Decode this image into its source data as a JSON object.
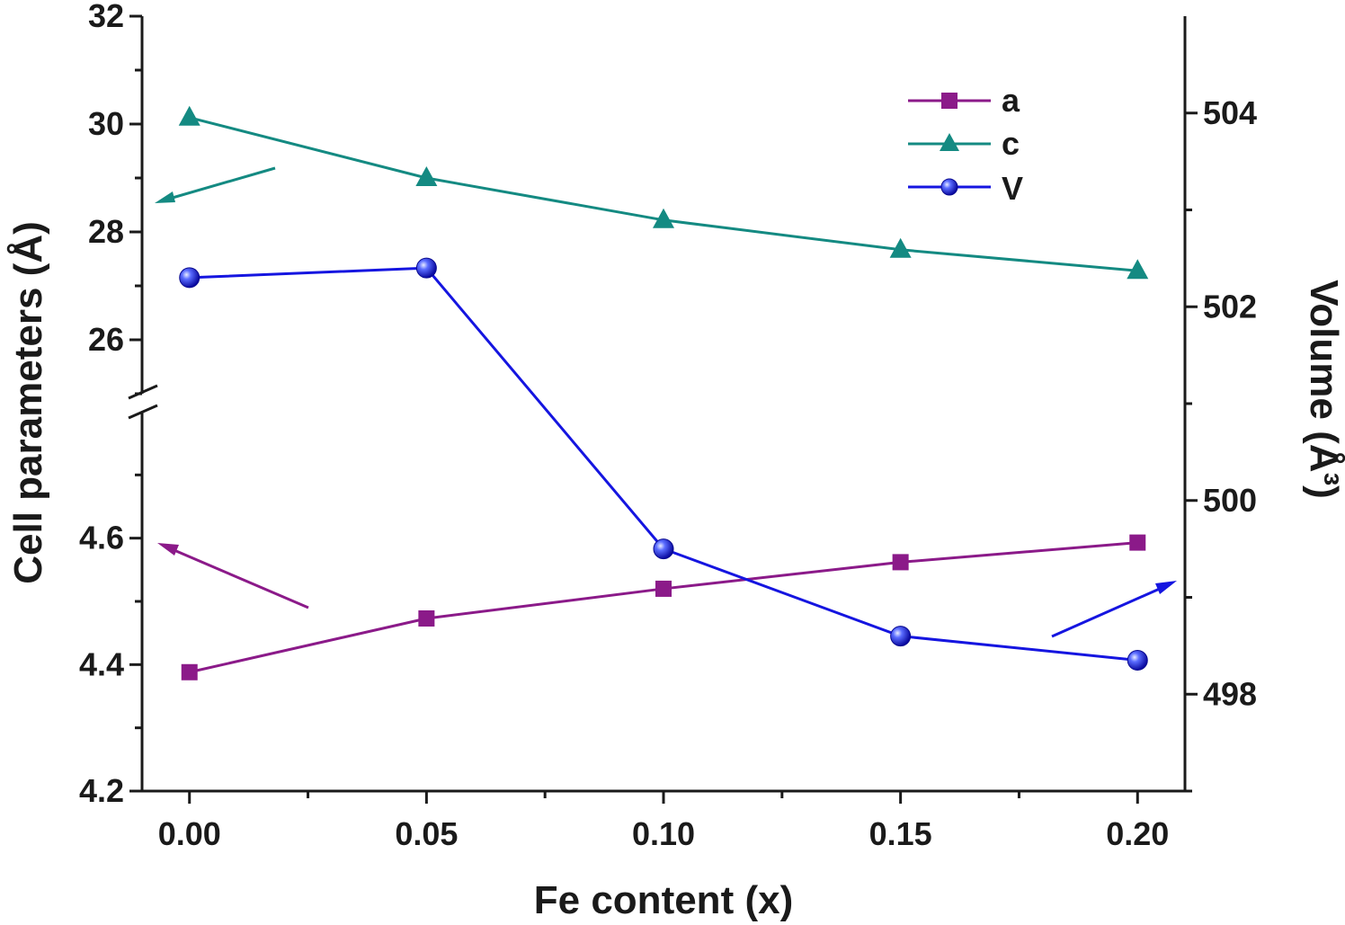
{
  "chart_data": {
    "type": "line",
    "x_values": [
      0.0,
      0.05,
      0.1,
      0.15,
      0.2
    ],
    "x_tick_labels": [
      "0.00",
      "0.05",
      "0.10",
      "0.15",
      "0.20"
    ],
    "xlabel": "Fe content (x)",
    "xlim": [
      -0.01,
      0.21
    ],
    "ylabel_left": "Cell parameters (Å)",
    "ylabel_right": "Volume (Å³)",
    "left_axis": {
      "broken": true,
      "upper_segment": {
        "range": [
          25.0,
          32.0
        ],
        "ticks": [
          26,
          28,
          30,
          32
        ],
        "tick_labels": [
          "26",
          "28",
          "30",
          "32"
        ]
      },
      "lower_segment": {
        "range": [
          4.2,
          4.8
        ],
        "ticks": [
          4.2,
          4.4,
          4.6
        ],
        "tick_labels": [
          "4.2",
          "4.4",
          "4.6"
        ]
      }
    },
    "right_axis": {
      "range": [
        497.0,
        505.0
      ],
      "ticks": [
        498,
        500,
        502,
        504
      ],
      "tick_labels": [
        "498",
        "500",
        "502",
        "504"
      ]
    },
    "series": [
      {
        "name": "a",
        "axis": "left",
        "marker": "square",
        "color": "#8b1a89",
        "values": [
          4.388,
          4.473,
          4.52,
          4.562,
          4.593
        ]
      },
      {
        "name": "c",
        "axis": "left",
        "marker": "triangle",
        "color": "#148a82",
        "values": [
          30.12,
          29.0,
          28.22,
          27.67,
          27.28
        ]
      },
      {
        "name": "V",
        "axis": "right",
        "marker": "circle",
        "color": "#1515e0",
        "values": [
          502.3,
          502.4,
          499.5,
          498.6,
          498.35
        ]
      }
    ],
    "legend": {
      "position": "top-right",
      "entries": [
        "a",
        "c",
        "V"
      ]
    },
    "grid": false
  }
}
